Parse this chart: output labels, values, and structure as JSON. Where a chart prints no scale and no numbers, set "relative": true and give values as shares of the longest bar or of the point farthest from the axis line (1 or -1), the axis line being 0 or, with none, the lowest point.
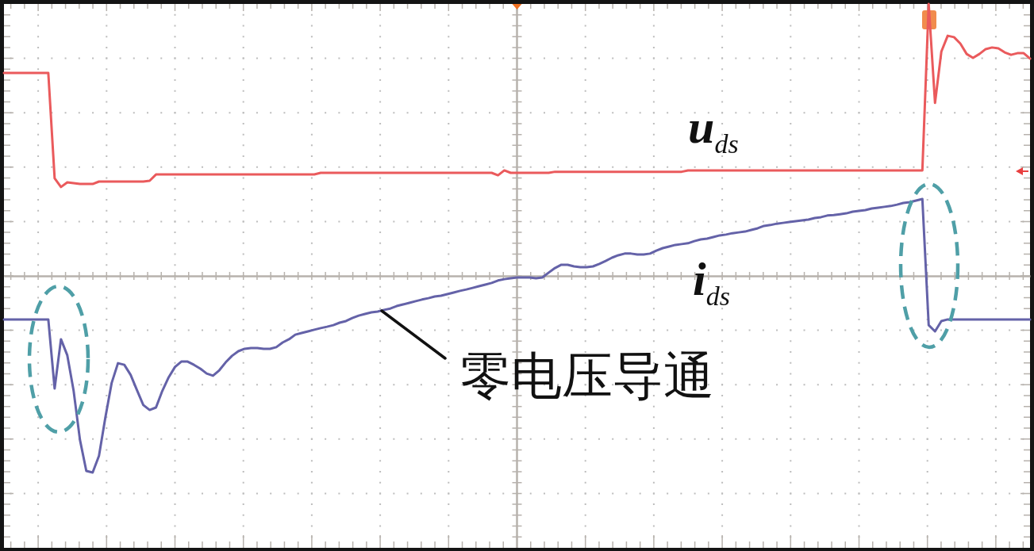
{
  "chart_data": {
    "type": "line",
    "relative": true,
    "grid": true,
    "annotations": [
      "零电压导通"
    ],
    "categories": [
      null,
      null,
      null,
      null,
      null,
      null,
      null,
      null,
      null,
      null,
      null,
      null,
      null,
      null,
      null,
      null,
      null,
      null,
      null,
      null,
      null,
      null,
      null,
      null,
      null,
      null,
      null,
      null,
      null,
      null,
      null,
      null,
      null,
      null,
      null,
      null,
      null,
      null,
      null,
      null,
      null,
      null,
      null,
      null,
      null,
      null,
      null,
      null,
      null,
      null,
      null,
      null,
      null,
      null,
      null,
      null,
      null,
      null,
      null,
      null,
      null,
      null,
      null,
      null,
      null,
      null,
      null,
      null,
      null,
      null,
      null,
      null,
      null,
      null,
      null,
      null,
      null,
      null,
      null,
      null,
      null,
      null,
      null,
      null,
      null,
      null,
      null,
      null,
      null,
      null,
      null,
      null,
      null,
      null,
      null,
      null,
      null,
      null,
      null,
      null,
      null,
      null,
      null,
      null,
      null,
      null,
      null,
      null,
      null,
      null,
      null,
      null,
      null,
      null,
      null,
      null,
      null,
      null,
      null,
      null,
      null,
      null,
      null,
      null,
      null,
      null,
      null,
      null,
      null,
      null,
      null,
      null,
      null,
      null,
      null,
      null,
      null,
      null,
      null,
      null,
      null,
      null,
      null,
      null,
      null,
      null,
      null,
      null,
      null,
      null,
      null,
      null,
      null,
      null,
      null,
      null,
      null,
      null,
      null,
      null,
      null,
      null,
      null
    ],
    "series": [
      {
        "name": "u$_{ds}$",
        "color": "#ea5a5c",
        "values": [
          0.746,
          0.746,
          0.746,
          0.746,
          0.746,
          0.746,
          0.746,
          0.746,
          0.359,
          0.327,
          0.344,
          0.341,
          0.338,
          0.338,
          0.338,
          0.347,
          0.347,
          0.347,
          0.347,
          0.347,
          0.347,
          0.347,
          0.347,
          0.35,
          0.373,
          0.373,
          0.373,
          0.373,
          0.373,
          0.373,
          0.373,
          0.373,
          0.373,
          0.373,
          0.373,
          0.373,
          0.373,
          0.373,
          0.373,
          0.373,
          0.373,
          0.373,
          0.373,
          0.373,
          0.373,
          0.373,
          0.373,
          0.373,
          0.373,
          0.373,
          0.379,
          0.379,
          0.379,
          0.379,
          0.379,
          0.379,
          0.379,
          0.379,
          0.379,
          0.379,
          0.379,
          0.379,
          0.379,
          0.379,
          0.379,
          0.379,
          0.379,
          0.379,
          0.379,
          0.379,
          0.379,
          0.379,
          0.379,
          0.379,
          0.379,
          0.379,
          0.379,
          0.379,
          0.37,
          0.388,
          0.379,
          0.379,
          0.379,
          0.379,
          0.379,
          0.379,
          0.379,
          0.383,
          0.383,
          0.383,
          0.383,
          0.383,
          0.383,
          0.383,
          0.383,
          0.383,
          0.383,
          0.383,
          0.383,
          0.383,
          0.383,
          0.383,
          0.383,
          0.383,
          0.383,
          0.383,
          0.383,
          0.383,
          0.388,
          0.388,
          0.388,
          0.388,
          0.388,
          0.388,
          0.388,
          0.388,
          0.388,
          0.388,
          0.388,
          0.388,
          0.388,
          0.388,
          0.388,
          0.388,
          0.388,
          0.388,
          0.388,
          0.388,
          0.388,
          0.388,
          0.388,
          0.388,
          0.388,
          0.388,
          0.388,
          0.388,
          0.388,
          0.388,
          0.388,
          0.388,
          0.388,
          0.388,
          0.388,
          0.388,
          0.388,
          0.388,
          1.0,
          0.636,
          0.825,
          0.883,
          0.878,
          0.854,
          0.816,
          0.802,
          0.816,
          0.834,
          0.84,
          0.837,
          0.822,
          0.813,
          0.819,
          0.819,
          0.799
        ]
      },
      {
        "name": "i$_{ds}$",
        "color": "#6462a8",
        "values": [
          -0.16,
          -0.16,
          -0.16,
          -0.16,
          -0.16,
          -0.16,
          -0.16,
          -0.16,
          -0.414,
          -0.233,
          -0.292,
          -0.423,
          -0.603,
          -0.717,
          -0.723,
          -0.662,
          -0.522,
          -0.394,
          -0.321,
          -0.327,
          -0.364,
          -0.42,
          -0.475,
          -0.493,
          -0.484,
          -0.423,
          -0.373,
          -0.335,
          -0.315,
          -0.315,
          -0.327,
          -0.341,
          -0.359,
          -0.367,
          -0.347,
          -0.318,
          -0.294,
          -0.277,
          -0.268,
          -0.265,
          -0.265,
          -0.268,
          -0.268,
          -0.262,
          -0.245,
          -0.233,
          -0.216,
          -0.21,
          -0.204,
          -0.198,
          -0.192,
          -0.187,
          -0.181,
          -0.172,
          -0.166,
          -0.155,
          -0.146,
          -0.14,
          -0.134,
          -0.131,
          -0.125,
          -0.12,
          -0.111,
          -0.105,
          -0.099,
          -0.093,
          -0.087,
          -0.082,
          -0.076,
          -0.073,
          -0.067,
          -0.061,
          -0.055,
          -0.05,
          -0.044,
          -0.038,
          -0.032,
          -0.026,
          -0.017,
          -0.012,
          -0.009,
          -0.006,
          -0.006,
          -0.006,
          -0.009,
          -0.006,
          0.012,
          0.029,
          0.041,
          0.041,
          0.035,
          0.032,
          0.032,
          0.035,
          0.044,
          0.055,
          0.067,
          0.076,
          0.082,
          0.082,
          0.079,
          0.079,
          0.082,
          0.093,
          0.102,
          0.108,
          0.114,
          0.117,
          0.12,
          0.128,
          0.134,
          0.137,
          0.143,
          0.149,
          0.152,
          0.157,
          0.16,
          0.163,
          0.169,
          0.175,
          0.184,
          0.187,
          0.192,
          0.195,
          0.198,
          0.201,
          0.204,
          0.207,
          0.213,
          0.216,
          0.222,
          0.224,
          0.227,
          0.23,
          0.236,
          0.239,
          0.242,
          0.248,
          0.251,
          0.254,
          0.257,
          0.262,
          0.268,
          0.271,
          0.277,
          0.283,
          -0.181,
          -0.204,
          -0.166,
          -0.16,
          -0.16,
          -0.16,
          -0.16,
          -0.16,
          -0.16,
          -0.16,
          -0.16,
          -0.16,
          -0.16,
          -0.16,
          -0.16,
          -0.16,
          -0.16
        ]
      }
    ]
  }
}
